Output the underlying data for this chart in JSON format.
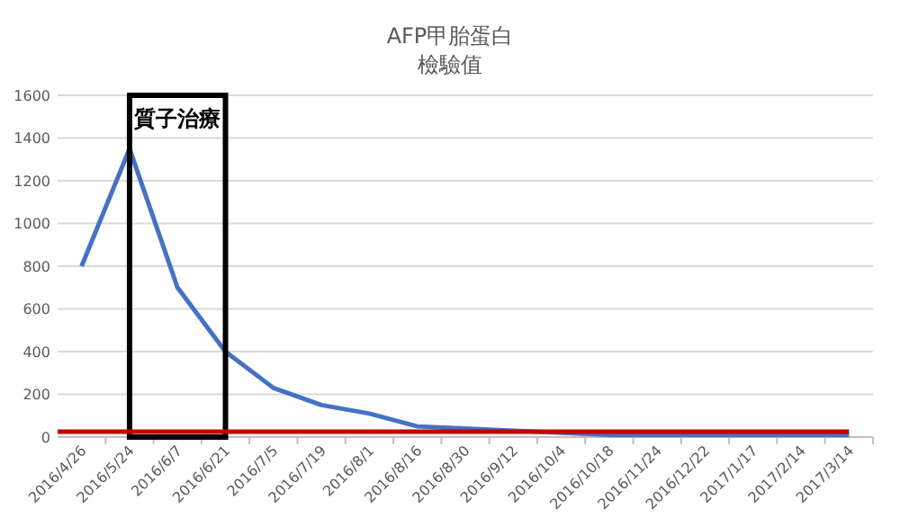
{
  "chart_data": {
    "type": "line",
    "title": "AFP甲胎蛋白",
    "subtitle": "檢驗值",
    "categories": [
      "2016/4/26",
      "2016/5/24",
      "2016/6/7",
      "2016/6/21",
      "2016/7/5",
      "2016/7/19",
      "2016/8/1",
      "2016/8/16",
      "2016/8/30",
      "2016/9/12",
      "2016/10/4",
      "2016/10/18",
      "2016/11/24",
      "2016/12/22",
      "2017/1/17",
      "2017/2/14",
      "2017/3/14"
    ],
    "series": [
      {
        "color": "#4472c4",
        "values": [
          800,
          1350,
          700,
          400,
          230,
          150,
          110,
          50,
          40,
          30,
          20,
          10,
          10,
          10,
          10,
          10,
          10
        ]
      }
    ],
    "ylim": [
      0,
      1600
    ],
    "yticks": [
      0,
      200,
      400,
      600,
      800,
      1000,
      1200,
      1400,
      1600
    ],
    "grid": "y",
    "marker": "none",
    "line_style": "solid",
    "ref_lines": [
      {
        "axis": "y",
        "value": 25,
        "color": "#c00000"
      }
    ],
    "annotations": [
      "質子治療"
    ]
  }
}
